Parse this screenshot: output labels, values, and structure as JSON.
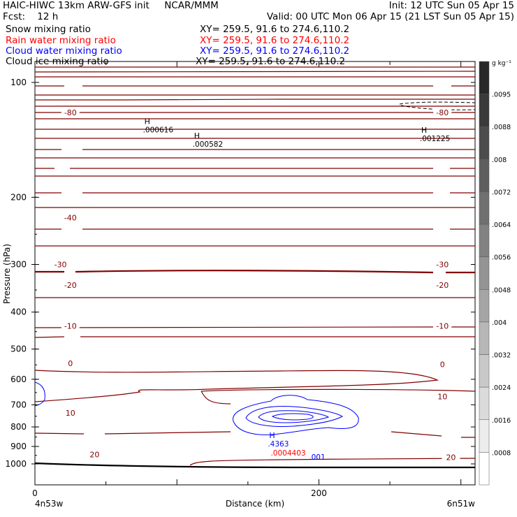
{
  "header": {
    "line1_left": "HAIC-HIWC 13km ARW-GFS init     NCAR/MMM",
    "line1_right": "Init: 12 UTC Sun 05 Apr 15",
    "line2_left": "Fcst:    12 h",
    "line2_right": "Valid: 00 UTC Mon 06 Apr 15 (21 LST Sun 05 Apr 15)",
    "fields": [
      {
        "name": "Snow mixing ratio",
        "xy": "XY= 259.5, 91.6 to 274.6,110.2",
        "color": "#000000"
      },
      {
        "name": "Rain water mixing ratio",
        "xy": "XY= 259.5, 91.6 to 274.6,110.2",
        "color": "#ff0000"
      },
      {
        "name": "Cloud water mixing ratio",
        "xy": "XY= 259.5, 91.6 to 274.6,110.2",
        "color": "#0000ff"
      },
      {
        "name": "Cloud ice mixing ratio",
        "xy": "XY= 259.5, 91.6 to 274.6,110.2",
        "color": "#000000"
      }
    ]
  },
  "colors": {
    "temperature": "#800000",
    "rain": "#ff0000",
    "cloud_water": "#0000ff",
    "snow": "#000000"
  },
  "chart_data": {
    "type": "cross-section contour",
    "xlabel": "Distance (km)",
    "ylabel": "Pressure (hPa)",
    "x_ticks": [
      "0",
      "200"
    ],
    "x_endpoints": [
      "4n53w",
      "6n51w"
    ],
    "y_ticks": [
      "100",
      "200",
      "300",
      "400",
      "500",
      "600",
      "700",
      "800",
      "900",
      "1000"
    ],
    "y_scale": "log",
    "ylim": [
      1050,
      75
    ],
    "xlim": [
      0,
      310
    ],
    "temperature_contour_labels": [
      {
        "text": "-80",
        "x": 25,
        "p": 120
      },
      {
        "text": "-80",
        "x": 287,
        "p": 120
      },
      {
        "text": "-40",
        "x": 25,
        "p": 226
      },
      {
        "text": "-30",
        "x": 18,
        "p": 300
      },
      {
        "text": "-30",
        "x": 287,
        "p": 300
      },
      {
        "text": "-20",
        "x": 25,
        "p": 340
      },
      {
        "text": "-20",
        "x": 287,
        "p": 340
      },
      {
        "text": "-10",
        "x": 25,
        "p": 435
      },
      {
        "text": "-10",
        "x": 287,
        "p": 435
      },
      {
        "text": "0",
        "x": 25,
        "p": 545
      },
      {
        "text": "0",
        "x": 287,
        "p": 548
      },
      {
        "text": "10",
        "x": 287,
        "p": 665
      },
      {
        "text": "10",
        "x": 25,
        "p": 735
      },
      {
        "text": "20",
        "x": 42,
        "p": 945
      },
      {
        "text": "20",
        "x": 293,
        "p": 960
      }
    ],
    "maxima_labels": [
      {
        "marker": "H",
        "value": ".000616",
        "x": 80,
        "p": 133,
        "color": "#000000"
      },
      {
        "marker": "H",
        "value": ".000582",
        "x": 115,
        "p": 145,
        "color": "#000000"
      },
      {
        "marker": "H",
        "value": ".001225",
        "x": 275,
        "p": 140,
        "color": "#000000"
      },
      {
        "marker": "H",
        "value": ".4363",
        "x": 166,
        "p": 885,
        "color": "#0000ff"
      },
      {
        "marker": "",
        "value": ".0004403",
        "x": 170,
        "p": 935,
        "color": "#ff0000"
      },
      {
        "marker": "",
        "value": ".001",
        "x": 195,
        "p": 958,
        "color": "#0000ff"
      }
    ],
    "colorbar": {
      "unit": "g kg⁻¹",
      "labels": [
        ".0095",
        ".0088",
        ".008",
        ".0072",
        ".0064",
        ".0056",
        ".0048",
        ".004",
        ".0032",
        ".0024",
        ".0016",
        ".0008"
      ]
    }
  }
}
